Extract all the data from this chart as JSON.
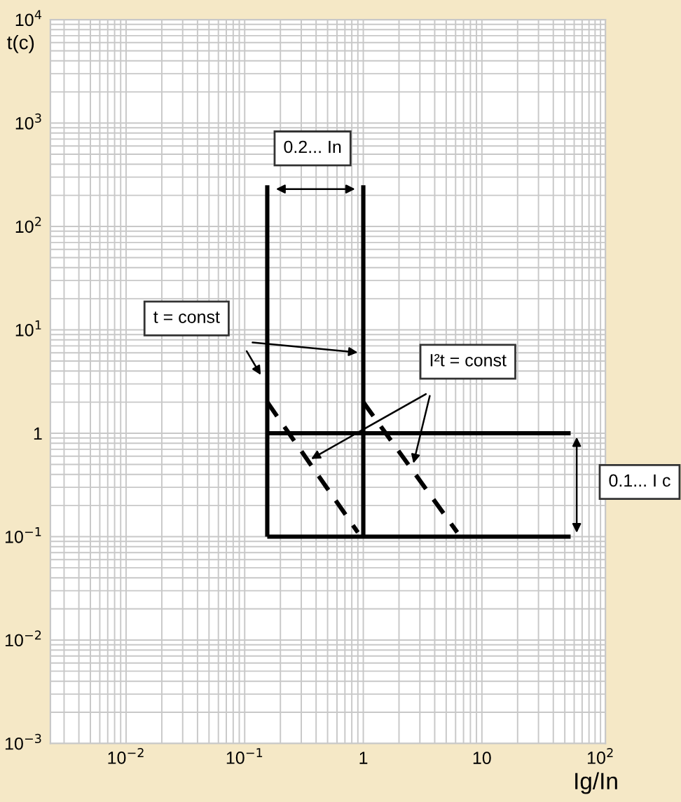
{
  "chart_data": {
    "type": "line",
    "xlabel": "Ig/In",
    "ylabel": "t(c)",
    "log": "xy",
    "grid": true,
    "line_style": "solid",
    "marker": "none",
    "xlim": [
      0.0023,
      110
    ],
    "ylim": [
      0.001,
      10000
    ],
    "xticks": [
      {
        "value": 0.01,
        "label": "10$^{−2}$"
      },
      {
        "value": 0.1,
        "label": "10$^{−1}$"
      },
      1,
      10,
      {
        "value": 100,
        "label": "10$^{2}$"
      }
    ],
    "yticks": [
      {
        "value": 0.001,
        "label": "10$^{−3}$"
      },
      {
        "value": 0.01,
        "label": "10$^{−2}$"
      },
      {
        "value": 0.1,
        "label": "10$^{−1}$"
      },
      1,
      {
        "value": 10,
        "label": "10$^{1}$"
      },
      {
        "value": 100,
        "label": "10$^{2}$"
      },
      {
        "value": 1000,
        "label": "10$^{3}$"
      },
      {
        "value": 10000,
        "label": "10$^{4}$"
      }
    ],
    "series": [
      {
        "color": "#000000",
        "x": [
          0.155,
          0.155
        ],
        "values": [
          250,
          0.1
        ]
      },
      {
        "color": "#000000",
        "x": [
          1,
          1
        ],
        "values": [
          250,
          0.1
        ]
      },
      {
        "color": "#000000",
        "x": [
          0.155,
          56
        ],
        "values": [
          1,
          1
        ]
      },
      {
        "color": "#000000",
        "x": [
          0.155,
          56
        ],
        "values": [
          0.1,
          0.1
        ]
      },
      {
        "color": "#000000",
        "x": [
          0.155,
          0.9
        ],
        "values": [
          2,
          0.11
        ],
        "line_style": "dashed"
      },
      {
        "color": "#000000",
        "x": [
          1,
          6.2
        ],
        "values": [
          2,
          0.11
        ],
        "line_style": "dashed"
      }
    ],
    "annotations": [
      "0.2... In",
      "t = const",
      "I²t = const",
      "0.1... I c"
    ]
  }
}
